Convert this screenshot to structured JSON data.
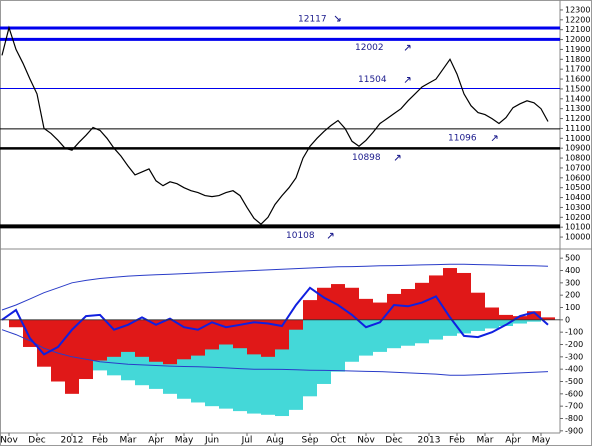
{
  "chart_data": [
    {
      "type": "line",
      "color": "#000000",
      "categories": [
        null,
        "Nov",
        null,
        null,
        null,
        "Dec",
        null,
        null,
        null,
        null,
        "2012",
        null,
        null,
        null,
        "Feb",
        null,
        null,
        null,
        "Mar",
        null,
        null,
        null,
        "Apr",
        null,
        null,
        null,
        "May",
        null,
        null,
        null,
        "Jun",
        null,
        null,
        null,
        null,
        "Jul",
        null,
        null,
        null,
        "Aug",
        null,
        null,
        null,
        null,
        "Sep",
        null,
        null,
        null,
        "Oct",
        null,
        null,
        null,
        "Nov",
        null,
        null,
        null,
        "Dec",
        null,
        null,
        null,
        null,
        "2013",
        null,
        null,
        null,
        "Feb",
        null,
        null,
        null,
        "Mar",
        null,
        null,
        null,
        "Apr",
        null,
        null,
        null,
        "May",
        null
      ],
      "values": [
        11840,
        12120,
        11900,
        11760,
        11600,
        11450,
        11100,
        11050,
        10980,
        10900,
        10880,
        10960,
        11030,
        11110,
        11080,
        11000,
        10900,
        10820,
        10720,
        10630,
        10660,
        10690,
        10570,
        10520,
        10560,
        10540,
        10500,
        10470,
        10450,
        10420,
        10410,
        10420,
        10450,
        10470,
        10420,
        10300,
        10190,
        10130,
        10200,
        10330,
        10420,
        10500,
        10600,
        10800,
        10920,
        11000,
        11070,
        11130,
        11180,
        11100,
        10970,
        10920,
        10980,
        11060,
        11150,
        11200,
        11250,
        11300,
        11380,
        11450,
        11520,
        11560,
        11600,
        11700,
        11800,
        11650,
        11450,
        11330,
        11260,
        11240,
        11200,
        11150,
        11210,
        11310,
        11350,
        11380,
        11360,
        11300,
        11170
      ],
      "levels": [
        {
          "value": 12117,
          "color": "#0000ee"
        },
        {
          "value": 12002,
          "color": "#0000ee"
        },
        {
          "value": 11504,
          "color": "#0000ee"
        },
        {
          "value": 11096,
          "color": "#000000"
        },
        {
          "value": 10898,
          "color": "#000000"
        },
        {
          "value": 10108,
          "color": "#000000"
        }
      ],
      "ylim": [
        9950,
        12350
      ],
      "yticks": [
        12300,
        12200,
        12100,
        12000,
        11900,
        11800,
        11700,
        11600,
        11500,
        11400,
        11300,
        11200,
        11100,
        11000,
        10900,
        10800,
        10700,
        10600,
        10500,
        10400,
        10300,
        10200,
        10100,
        10000
      ]
    },
    {
      "type": "oscillator",
      "series": [
        {
          "style": "bar",
          "color": "#44d8d8",
          "values": [
            0,
            -40,
            -100,
            -170,
            -230,
            -290,
            -360,
            -410,
            -450,
            -490,
            -530,
            -560,
            -600,
            -640,
            -670,
            -700,
            -720,
            -740,
            -760,
            -770,
            -780,
            -730,
            -620,
            -520,
            -420,
            -340,
            -290,
            -260,
            -230,
            -210,
            -190,
            -160,
            -130,
            -110,
            -90,
            -70,
            -50,
            -30,
            -15,
            0
          ]
        },
        {
          "style": "bar",
          "color": "#e01818",
          "values": [
            0,
            -60,
            -220,
            -380,
            -500,
            -600,
            -480,
            -330,
            -300,
            -260,
            -300,
            -340,
            -360,
            -320,
            -290,
            -240,
            -200,
            -230,
            -280,
            -300,
            -240,
            -80,
            160,
            260,
            290,
            260,
            170,
            140,
            210,
            250,
            300,
            360,
            420,
            380,
            220,
            100,
            40,
            30,
            70,
            20
          ]
        },
        {
          "style": "line",
          "color": "#2a3cc8",
          "values": [
            80,
            120,
            170,
            220,
            260,
            300,
            320,
            335,
            345,
            355,
            360,
            365,
            370,
            375,
            380,
            385,
            390,
            395,
            400,
            405,
            410,
            415,
            420,
            425,
            430,
            432,
            435,
            438,
            440,
            442,
            445,
            448,
            450,
            450,
            448,
            445,
            442,
            440,
            438,
            435
          ]
        },
        {
          "style": "line",
          "color": "#2a3cc8",
          "values": [
            -80,
            -120,
            -170,
            -230,
            -270,
            -300,
            -320,
            -340,
            -350,
            -360,
            -365,
            -370,
            -375,
            -378,
            -380,
            -385,
            -390,
            -395,
            -400,
            -400,
            -402,
            -405,
            -408,
            -410,
            -412,
            -415,
            -418,
            -420,
            -425,
            -430,
            -435,
            -440,
            -450,
            -450,
            -445,
            -440,
            -435,
            -430,
            -425,
            -420
          ]
        },
        {
          "style": "line",
          "color": "#1020e0",
          "values": [
            0,
            80,
            -150,
            -280,
            -220,
            -80,
            30,
            40,
            -80,
            -40,
            20,
            -40,
            10,
            -60,
            -80,
            -20,
            -60,
            -40,
            -20,
            -30,
            -50,
            120,
            260,
            180,
            120,
            40,
            -60,
            -20,
            120,
            110,
            140,
            190,
            20,
            -130,
            -140,
            -100,
            -40,
            30,
            60,
            -40
          ]
        }
      ],
      "ylim": [
        -950,
        550
      ],
      "yticks": [
        500,
        400,
        300,
        200,
        100,
        0,
        -100,
        -200,
        -300,
        -400,
        -500,
        -600,
        -700,
        -800,
        -900
      ]
    }
  ]
}
